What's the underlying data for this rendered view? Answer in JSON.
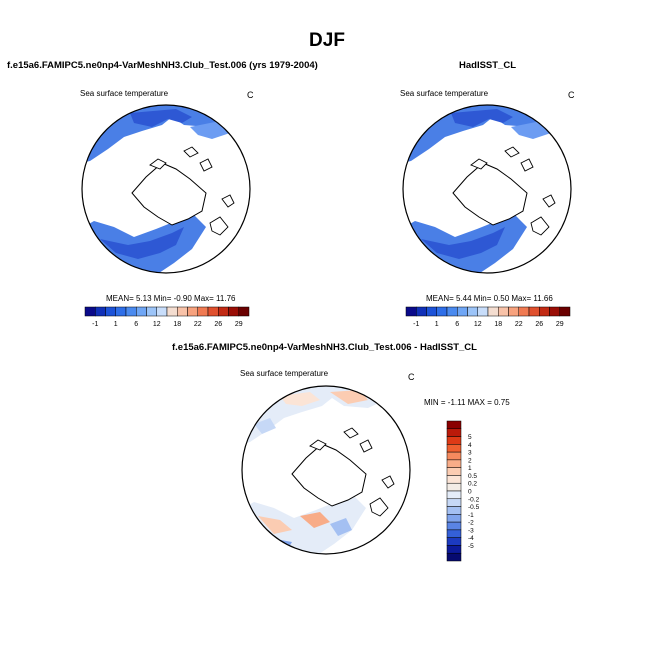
{
  "title": "DJF",
  "panels": [
    {
      "title": "f.e15a6.FAMIPC5.ne0np4-VarMeshNH3.Club_Test.006 (yrs 1979-2004)",
      "variable": "Sea surface temperature",
      "units": "C",
      "stats": "MEAN=   5.13  Min=  -0.90  Max=  11.76",
      "colorbar": {
        "colors": [
          "#0a0a8a",
          "#1030b8",
          "#1c52d8",
          "#2e6ee8",
          "#4a8aef",
          "#6fa6f5",
          "#9cc4f8",
          "#c8ddfa",
          "#f4ddd0",
          "#f8c2a8",
          "#f7a27e",
          "#f07a52",
          "#e0502e",
          "#c22a14",
          "#9a0e06",
          "#6a0000"
        ],
        "labels": [
          {
            "i": 1,
            "t": "-1"
          },
          {
            "i": 3,
            "t": "1"
          },
          {
            "i": 5,
            "t": "6"
          },
          {
            "i": 7,
            "t": "12"
          },
          {
            "i": 9,
            "t": "18"
          },
          {
            "i": 11,
            "t": "22"
          },
          {
            "i": 13,
            "t": "26"
          },
          {
            "i": 15,
            "t": "29"
          }
        ]
      }
    },
    {
      "title": "HadISST_CL",
      "variable": "Sea surface temperature",
      "units": "C",
      "stats": "MEAN=   5.44  Min=   0.50  Max=  11.66",
      "colorbar": {
        "colors": [
          "#0a0a8a",
          "#1030b8",
          "#1c52d8",
          "#2e6ee8",
          "#4a8aef",
          "#6fa6f5",
          "#9cc4f8",
          "#c8ddfa",
          "#f4ddd0",
          "#f8c2a8",
          "#f7a27e",
          "#f07a52",
          "#e0502e",
          "#c22a14",
          "#9a0e06",
          "#6a0000"
        ],
        "labels": [
          {
            "i": 1,
            "t": "-1"
          },
          {
            "i": 3,
            "t": "1"
          },
          {
            "i": 5,
            "t": "6"
          },
          {
            "i": 7,
            "t": "12"
          },
          {
            "i": 9,
            "t": "18"
          },
          {
            "i": 11,
            "t": "22"
          },
          {
            "i": 13,
            "t": "26"
          },
          {
            "i": 15,
            "t": "29"
          }
        ]
      }
    },
    {
      "title": "f.e15a6.FAMIPC5.ne0np4-VarMeshNH3.Club_Test.006 - HadISST_CL",
      "variable": "Sea surface temperature",
      "units": "C",
      "stats": "MIN =  -1.11 MAX =    0.75",
      "colorbar": {
        "colors": [
          "#8a0000",
          "#bb1a0a",
          "#de3a16",
          "#ef6030",
          "#f58a5e",
          "#f8ac88",
          "#fbccb2",
          "#fbe4d6",
          "#f3ece6",
          "#e4ecf8",
          "#c6d8f6",
          "#a4c0f2",
          "#80a4ec",
          "#5a84e4",
          "#3460d8",
          "#1c3ac0",
          "#0c1a9a",
          "#060a70"
        ],
        "labels": [
          "5",
          "4",
          "3",
          "2",
          "1",
          "0.5",
          "0.2",
          "0",
          "-0.2",
          "-0.5",
          "-1",
          "-2",
          "-3",
          "-4",
          "-5"
        ]
      }
    }
  ]
}
